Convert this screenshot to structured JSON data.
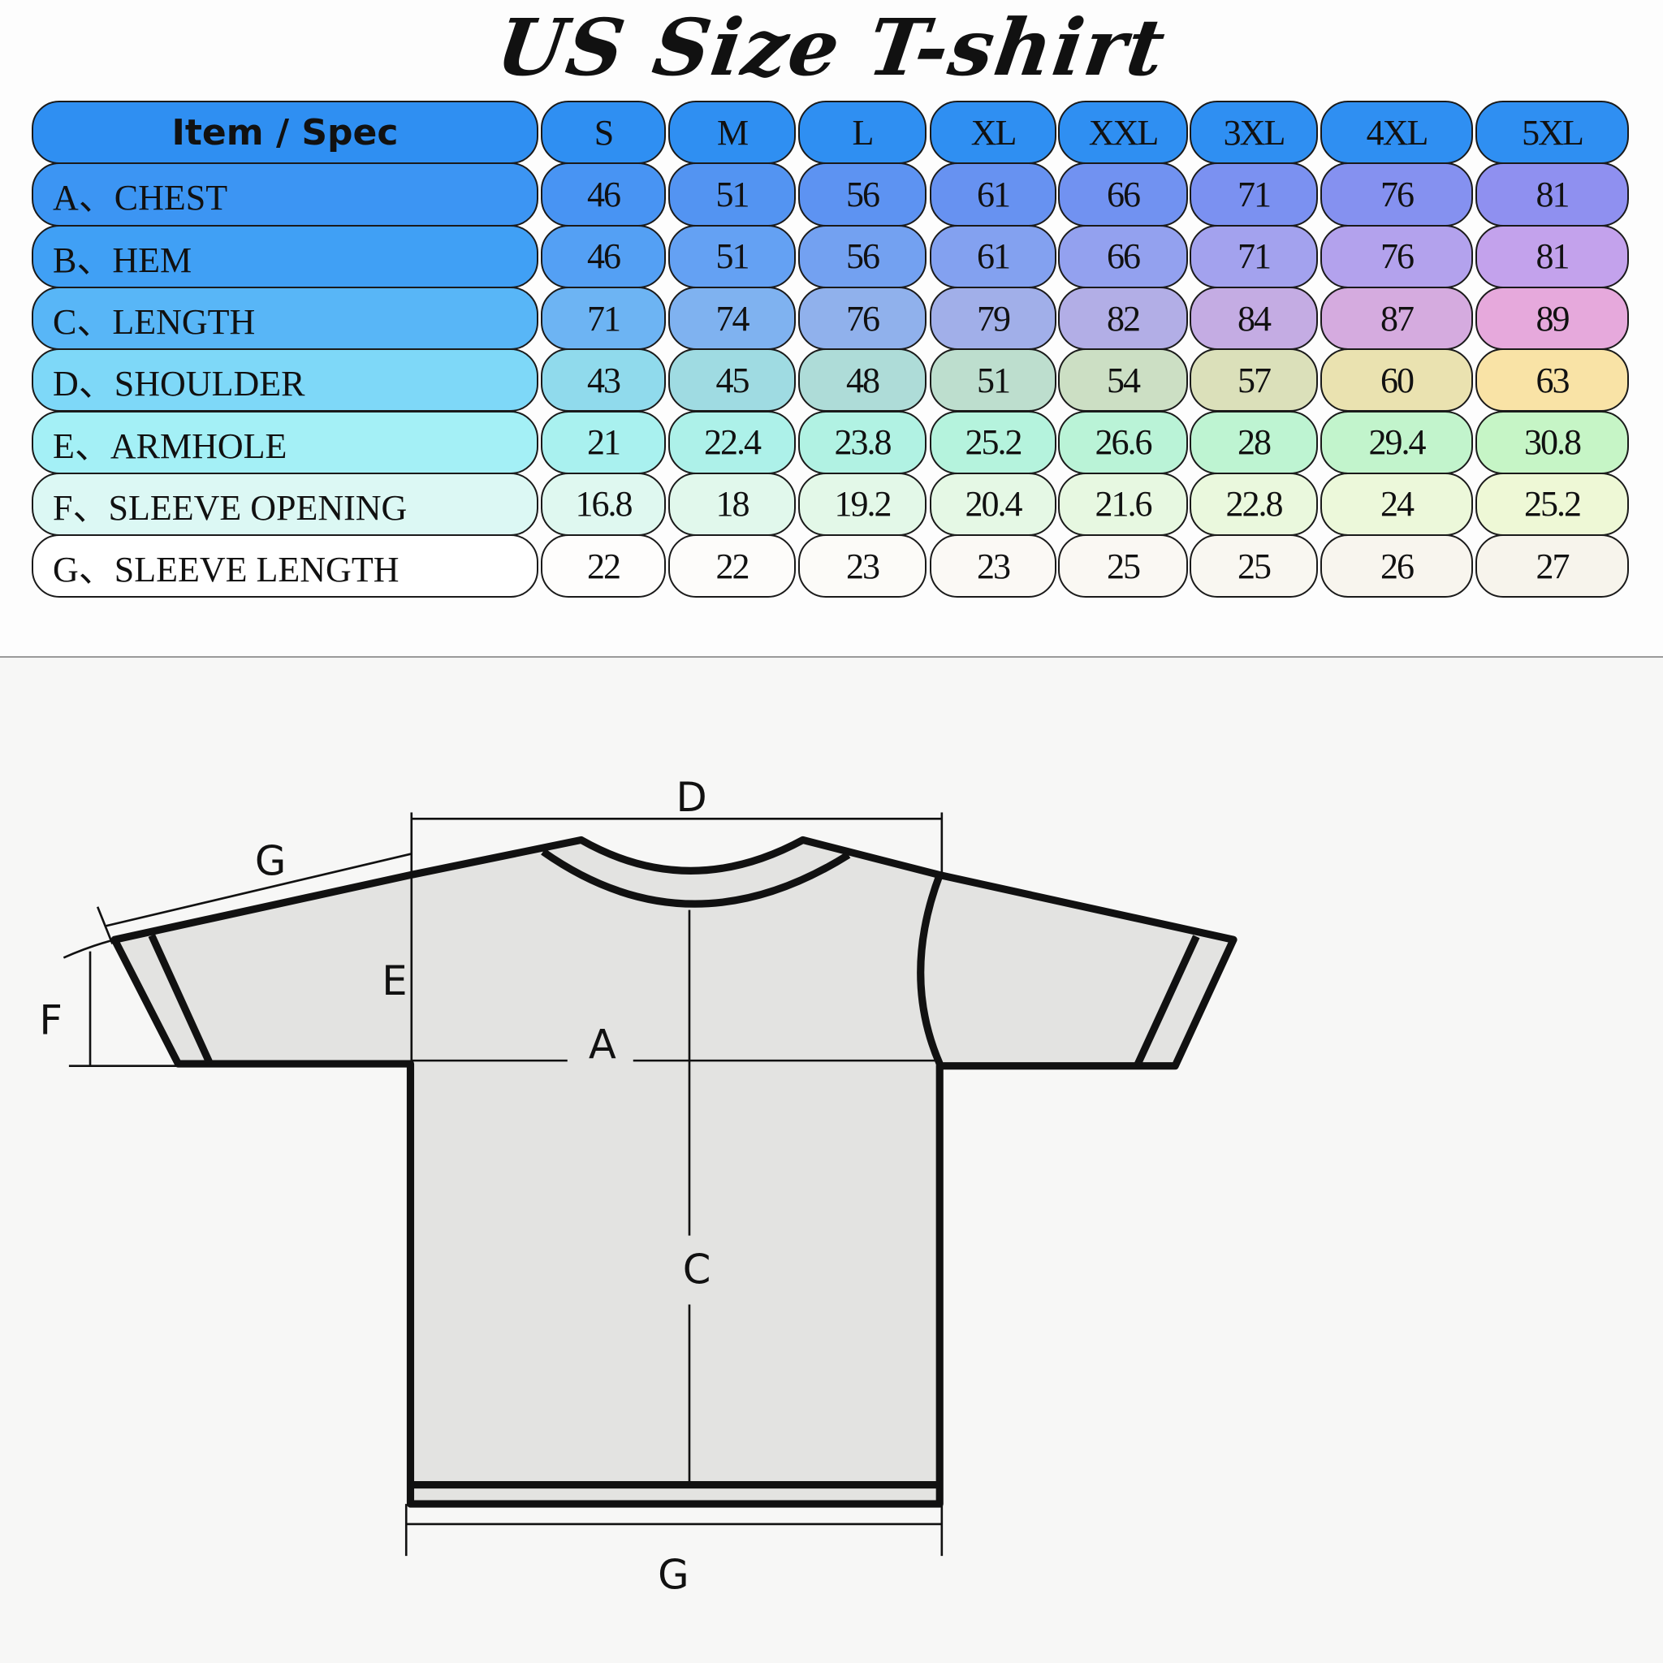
{
  "title": "US Size T-shirt",
  "table": {
    "header_label": "Item / Spec",
    "sizes": [
      "S",
      "M",
      "L",
      "XL",
      "XXL",
      "3XL",
      "4XL",
      "5XL"
    ],
    "rows": [
      {
        "label": "A、CHEST",
        "values": [
          "46",
          "51",
          "56",
          "61",
          "66",
          "71",
          "76",
          "81"
        ]
      },
      {
        "label": "B、HEM",
        "values": [
          "46",
          "51",
          "56",
          "61",
          "66",
          "71",
          "76",
          "81"
        ]
      },
      {
        "label": "C、LENGTH",
        "values": [
          "71",
          "74",
          "76",
          "79",
          "82",
          "84",
          "87",
          "89"
        ]
      },
      {
        "label": "D、SHOULDER",
        "values": [
          "43",
          "45",
          "48",
          "51",
          "54",
          "57",
          "60",
          "63"
        ]
      },
      {
        "label": "E、ARMHOLE",
        "values": [
          "21",
          "22.4",
          "23.8",
          "25.2",
          "26.6",
          "28",
          "29.4",
          "30.8"
        ]
      },
      {
        "label": "F、SLEEVE OPENING",
        "values": [
          "16.8",
          "18",
          "19.2",
          "20.4",
          "21.6",
          "22.8",
          "24",
          "25.2"
        ]
      },
      {
        "label": "G、SLEEVE LENGTH",
        "values": [
          "22",
          "22",
          "23",
          "23",
          "25",
          "25",
          "26",
          "27"
        ]
      }
    ]
  },
  "colors": {
    "header": "#2f8ff2",
    "row_left": [
      "#3c95f3",
      "#40a0f5",
      "#58b6f7",
      "#7ed8f8",
      "#a4f0f6",
      "#dcf8f4",
      "#ffffff"
    ],
    "row_right": [
      "#8f90f0",
      "#c3a2ec",
      "#e6a9dc",
      "#f9e3a6",
      "#c6f5c6",
      "#eef8d6",
      "#f7f4ec"
    ],
    "shirt_fill": "#e3e3e1",
    "outline": "#111111"
  },
  "diagram": {
    "labels": {
      "D": "D",
      "G_sleeve": "G",
      "E": "E",
      "F": "F",
      "A": "A",
      "C": "C",
      "G_hem": "G"
    }
  }
}
